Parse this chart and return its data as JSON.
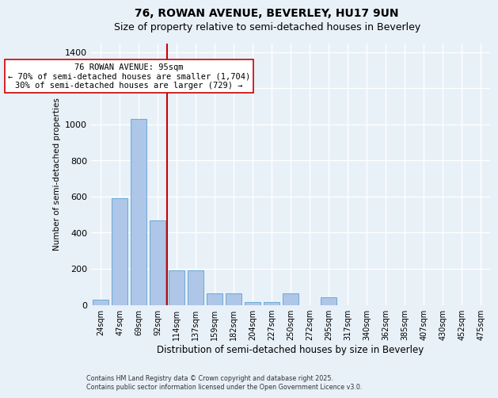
{
  "title_line1": "76, ROWAN AVENUE, BEVERLEY, HU17 9UN",
  "title_line2": "Size of property relative to semi-detached houses in Beverley",
  "xlabel": "Distribution of semi-detached houses by size in Beverley",
  "ylabel": "Number of semi-detached properties",
  "footer_line1": "Contains HM Land Registry data © Crown copyright and database right 2025.",
  "footer_line2": "Contains public sector information licensed under the Open Government Licence v3.0.",
  "categories": [
    "24sqm",
    "47sqm",
    "69sqm",
    "92sqm",
    "114sqm",
    "137sqm",
    "159sqm",
    "182sqm",
    "204sqm",
    "227sqm",
    "250sqm",
    "272sqm",
    "295sqm",
    "317sqm",
    "340sqm",
    "362sqm",
    "385sqm",
    "407sqm",
    "430sqm",
    "452sqm",
    "475sqm"
  ],
  "values": [
    28,
    590,
    1030,
    470,
    190,
    190,
    65,
    65,
    15,
    15,
    65,
    0,
    40,
    0,
    0,
    0,
    0,
    0,
    0,
    0,
    0
  ],
  "bar_color": "#aec6e8",
  "bar_edge_color": "#6aaad4",
  "property_bin_index": 3,
  "red_line_color": "#cc0000",
  "annotation_text_line1": "76 ROWAN AVENUE: 95sqm",
  "annotation_text_line2": "← 70% of semi-detached houses are smaller (1,704)",
  "annotation_text_line3": "30% of semi-detached houses are larger (729) →",
  "annotation_box_color": "#ffffff",
  "annotation_box_edge": "#cc0000",
  "ylim": [
    0,
    1450
  ],
  "background_color": "#e8f0f8",
  "grid_color": "#ffffff",
  "title_fontsize": 10,
  "subtitle_fontsize": 9
}
